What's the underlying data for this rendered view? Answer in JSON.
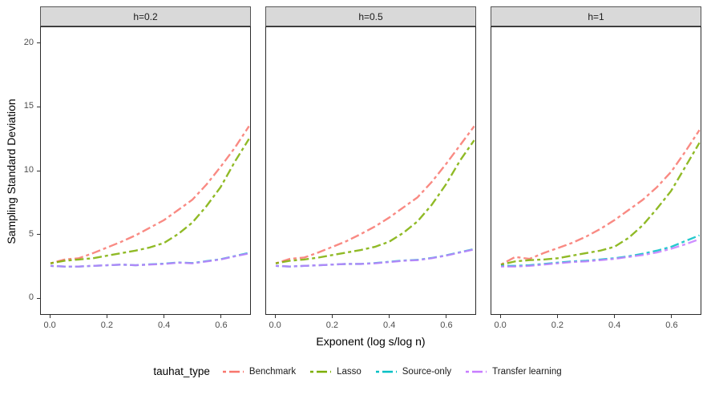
{
  "chart_data": {
    "type": "line",
    "title": "",
    "xlabel": "Exponent (log s/log n)",
    "ylabel": "Sampling Standard Deviation",
    "legend_title": "tauhat_type",
    "legend_position": "bottom",
    "grid": false,
    "linetype": "twodash",
    "xlim": [
      -0.034,
      0.704
    ],
    "ylim": [
      -1.3,
      21.3
    ],
    "x_ticks": [
      0.0,
      0.2,
      0.4,
      0.6
    ],
    "x_tick_labels": [
      "0.0",
      "0.2",
      "0.4",
      "0.6"
    ],
    "y_ticks": [
      0,
      5,
      10,
      15,
      20
    ],
    "y_tick_labels": [
      "0",
      "5",
      "10",
      "15",
      "20"
    ],
    "x": [
      0,
      0.05,
      0.1,
      0.15,
      0.2,
      0.25,
      0.3,
      0.35,
      0.4,
      0.45,
      0.5,
      0.55,
      0.6,
      0.65,
      0.7
    ],
    "series_meta": [
      {
        "key": "benchmark",
        "label": "Benchmark",
        "color": "#F8766D"
      },
      {
        "key": "lasso",
        "label": "Lasso",
        "color": "#7CAE00"
      },
      {
        "key": "source_only",
        "label": "Source-only",
        "color": "#00BFC4"
      },
      {
        "key": "transfer",
        "label": "Transfer learning",
        "color": "#C77CFF"
      }
    ],
    "facets": [
      {
        "label": "h=0.2",
        "series": {
          "benchmark": [
            2.7,
            3.0,
            3.1,
            3.5,
            3.95,
            4.4,
            4.9,
            5.5,
            6.1,
            6.9,
            7.7,
            8.9,
            10.3,
            11.8,
            13.5
          ],
          "lasso": [
            2.7,
            2.9,
            3.0,
            3.1,
            3.3,
            3.5,
            3.7,
            3.95,
            4.3,
            5.0,
            5.9,
            7.2,
            8.7,
            10.7,
            12.5
          ],
          "source_only": [
            2.5,
            2.45,
            2.45,
            2.5,
            2.55,
            2.6,
            2.55,
            2.62,
            2.67,
            2.77,
            2.72,
            2.87,
            3.02,
            3.27,
            3.52
          ],
          "transfer": [
            2.5,
            2.45,
            2.45,
            2.5,
            2.55,
            2.6,
            2.55,
            2.6,
            2.65,
            2.75,
            2.7,
            2.85,
            3.0,
            3.25,
            3.48
          ]
        }
      },
      {
        "label": "h=0.5",
        "series": {
          "benchmark": [
            2.7,
            3.05,
            3.15,
            3.55,
            4.0,
            4.45,
            5.0,
            5.6,
            6.3,
            7.1,
            7.9,
            9.1,
            10.5,
            12.0,
            13.5
          ],
          "lasso": [
            2.7,
            2.9,
            3.0,
            3.15,
            3.35,
            3.55,
            3.75,
            4.0,
            4.4,
            5.1,
            6.0,
            7.3,
            8.9,
            10.8,
            12.4
          ],
          "source_only": [
            2.5,
            2.45,
            2.5,
            2.55,
            2.6,
            2.65,
            2.65,
            2.72,
            2.82,
            2.92,
            2.97,
            3.12,
            3.32,
            3.57,
            3.82
          ],
          "transfer": [
            2.5,
            2.45,
            2.5,
            2.55,
            2.6,
            2.65,
            2.65,
            2.7,
            2.8,
            2.9,
            2.95,
            3.1,
            3.3,
            3.55,
            3.8
          ]
        }
      },
      {
        "label": "h=1",
        "series": {
          "benchmark": [
            2.6,
            3.2,
            3.05,
            3.5,
            3.9,
            4.3,
            4.8,
            5.4,
            6.1,
            6.9,
            7.7,
            8.7,
            9.9,
            11.5,
            13.2
          ],
          "lasso": [
            2.6,
            2.85,
            2.95,
            3.0,
            3.1,
            3.3,
            3.5,
            3.7,
            4.0,
            4.7,
            5.7,
            7.0,
            8.4,
            10.3,
            12.2
          ],
          "source_only": [
            2.5,
            2.5,
            2.55,
            2.65,
            2.75,
            2.85,
            2.9,
            3.0,
            3.1,
            3.25,
            3.45,
            3.7,
            4.0,
            4.45,
            4.9
          ],
          "transfer": [
            2.45,
            2.45,
            2.5,
            2.6,
            2.7,
            2.8,
            2.85,
            2.95,
            3.05,
            3.2,
            3.35,
            3.55,
            3.85,
            4.2,
            4.6
          ]
        }
      }
    ]
  }
}
